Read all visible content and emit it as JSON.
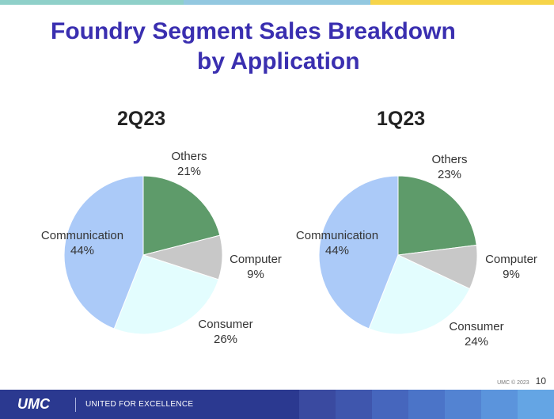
{
  "title": {
    "line1": "Foundry Segment Sales Breakdown",
    "line2": "by Application"
  },
  "colors": {
    "title": "#3a2fb0",
    "others": "#5e9b6a",
    "computer": "#c8c8c8",
    "consumer": "#e3fdfe",
    "communication": "#abcaf8",
    "footer": "#2b3990"
  },
  "chart_data": [
    {
      "type": "pie",
      "title": "2Q23",
      "slices": [
        {
          "name": "Others",
          "value": 21,
          "label": "21%"
        },
        {
          "name": "Computer",
          "value": 9,
          "label": "9%"
        },
        {
          "name": "Consumer",
          "value": 26,
          "label": "26%"
        },
        {
          "name": "Communication",
          "value": 44,
          "label": "44%"
        }
      ]
    },
    {
      "type": "pie",
      "title": "1Q23",
      "slices": [
        {
          "name": "Others",
          "value": 23,
          "label": "23%"
        },
        {
          "name": "Computer",
          "value": 9,
          "label": "9%"
        },
        {
          "name": "Consumer",
          "value": 24,
          "label": "24%"
        },
        {
          "name": "Communication",
          "value": 44,
          "label": "44%"
        }
      ]
    }
  ],
  "footer": {
    "logo": "UMC",
    "tagline": "UNITED FOR EXCELLENCE",
    "copyright": "UMC © 2023",
    "page_number": "10"
  }
}
